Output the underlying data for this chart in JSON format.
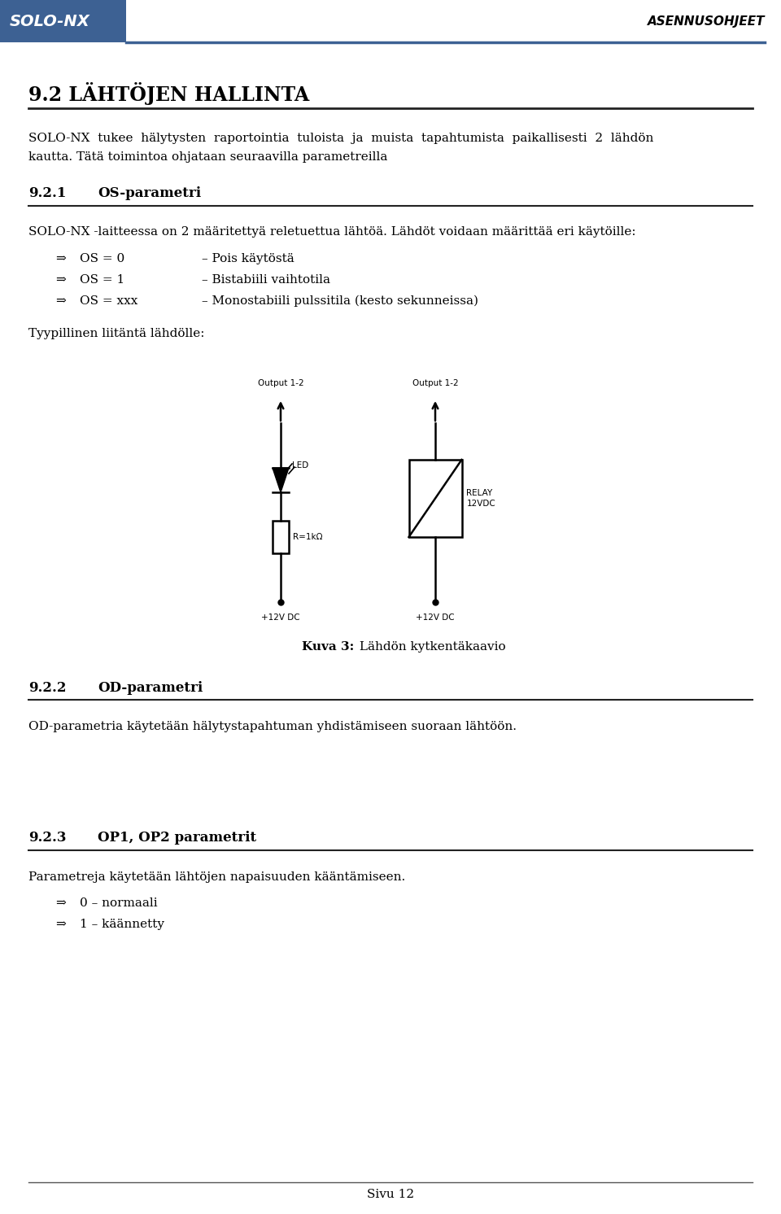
{
  "page_width": 9.6,
  "page_height": 14.92,
  "bg_color": "#ffffff",
  "header_bg": "#3d6193",
  "header_text_left": "SOLO-NX",
  "header_text_right": "ASENNUSOHJEET",
  "header_text_color": "#ffffff",
  "title": "9.2 LÄHTÖJEN HALLINTA",
  "para1_line1": "SOLO-NX  tukee  hälytysten  raportointia  tuloista  ja  muista  tapahtumista  paikallisesti  2  lähdön",
  "para1_line2": "kautta. Tätä toimintoa ohjataan seuraavilla parametreilla",
  "section1_num": "9.2.1",
  "section1_title": "OS-parametri",
  "section1_text": "SOLO-NX -laitteessa on 2 määritettyä reletuettua lähtöä. Lähdöt voidaan määrittää eri käytöille:",
  "bullet1_arrow": "⇒",
  "bullet1_text": "OS = 0",
  "bullet1_desc": "– Pois käytöstä",
  "bullet2_text": "OS = 1",
  "bullet2_desc": "– Bistabiili vaihtotila",
  "bullet3_text": "OS = xxx",
  "bullet3_desc": "– Monostabiili pulssitila (kesto sekunneissa)",
  "tyypillinen": "Tyypillinen liitäntä lähdölle:",
  "output_label": "Output 1-2",
  "led_label": "LED",
  "res_label": "R=1kΩ",
  "relay_label": "RELAY\n12VDC",
  "plus12v_label": "+12V DC",
  "kuva_caption_bold": "Kuva 3:",
  "kuva_caption_rest": " Lähdön kytkentäkaavio",
  "section2_num": "9.2.2",
  "section2_title": "OD-parametri",
  "section2_text": "OD-parametria käytetään hälytystapahtuman yhdistämiseen suoraan lähtöön.",
  "section3_num": "9.2.3",
  "section3_title": "OP1, OP2 parametrit",
  "section3_text": "Parametreja käytetään lähtöjen napaisuuden kääntämiseen.",
  "bullet_b1": "0 – normaali",
  "bullet_b2": "1 – käännetty",
  "footer_text": "Sivu 12",
  "text_color": "#000000",
  "circuit_color": "#000000",
  "line_color": "#555555"
}
